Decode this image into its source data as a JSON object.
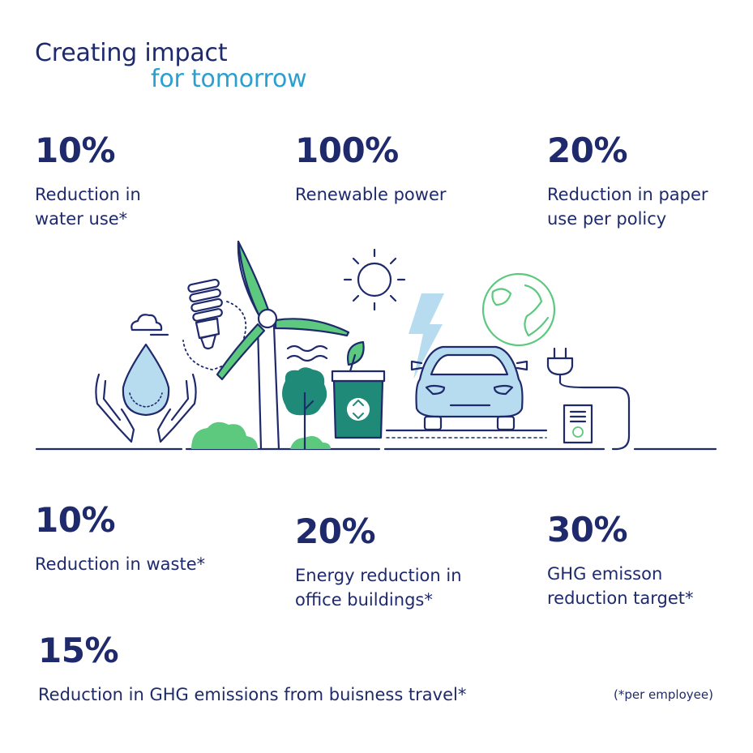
{
  "title": {
    "line1": "Creating impact",
    "line2": "for tomorrow"
  },
  "stats": [
    {
      "value": "10%",
      "label": "Reduction in\nwater use*"
    },
    {
      "value": "100%",
      "label": "Renewable power"
    },
    {
      "value": "20%",
      "label": "Reduction in paper\nuse per policy"
    },
    {
      "value": "10%",
      "label": "Reduction in waste*"
    },
    {
      "value": "20%",
      "label": "Energy reduction in\noffice buildings*"
    },
    {
      "value": "30%",
      "label": "GHG emisson\nreduction target*"
    },
    {
      "value": "15%",
      "label": "Reduction in GHG emissions from buisness travel*"
    }
  ],
  "footnote": "(*per employee)",
  "colors": {
    "navy": "#1e2a6b",
    "accent_blue": "#2a9fd0",
    "green": "#5cc97f",
    "teal": "#1f8a78",
    "light_blue": "#b7dcef"
  },
  "illustration": {
    "icons": [
      "cloud-icon",
      "water-drop-icon",
      "hands-icon",
      "light-bulb-icon",
      "wind-turbine-icon",
      "tree-icon",
      "bush-icon",
      "recycle-bin-icon",
      "leaf-icon",
      "sun-icon",
      "lightning-icon",
      "globe-icon",
      "electric-car-icon",
      "plug-icon",
      "recycled-paper-icon"
    ]
  }
}
